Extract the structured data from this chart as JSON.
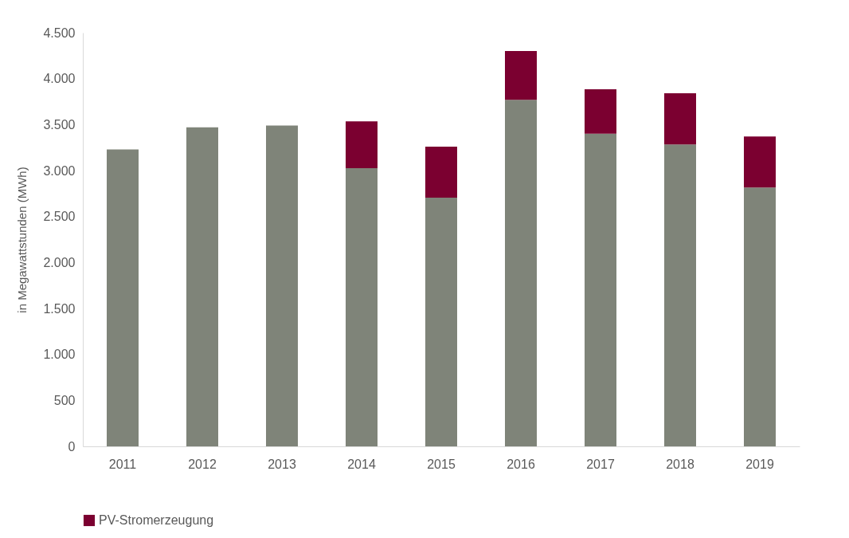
{
  "chart_data": {
    "type": "bar",
    "stacked": true,
    "ylabel": "in Megawattstunden (MWh)",
    "categories": [
      "2011",
      "2012",
      "2013",
      "2014",
      "2015",
      "2016",
      "2017",
      "2018",
      "2019"
    ],
    "series": [
      {
        "color": "#7f8479",
        "values": [
          3230,
          3470,
          3490,
          3025,
          2705,
          3770,
          3400,
          3285,
          2815
        ]
      },
      {
        "name": "PV-Stromerzeugung",
        "color": "#7b0030",
        "values": [
          null,
          null,
          null,
          510,
          555,
          530,
          485,
          555,
          555
        ]
      }
    ],
    "ylim": [
      0,
      4500
    ],
    "yticks": [
      0,
      500,
      {
        "value": 1000,
        "label": "1.000"
      },
      {
        "value": 1500,
        "label": "1.500"
      },
      {
        "value": 2000,
        "label": "2.000"
      },
      {
        "value": 2500,
        "label": "2.500"
      },
      {
        "value": 3000,
        "label": "3.000"
      },
      {
        "value": 3500,
        "label": "3.500"
      },
      {
        "value": 4000,
        "label": "4.000"
      },
      {
        "value": 4500,
        "label": "4.500"
      }
    ],
    "grid": false,
    "legend": "bottom"
  }
}
